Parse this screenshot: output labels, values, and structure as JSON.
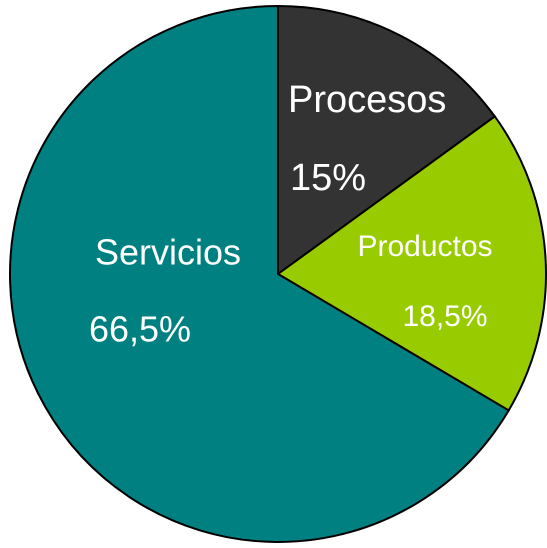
{
  "chart_data": {
    "type": "pie",
    "categories": [
      "Procesos",
      "Productos",
      "Servicios"
    ],
    "values": [
      15,
      18.5,
      66.5
    ],
    "value_labels": [
      "15%",
      "18,5%",
      "66,5%"
    ],
    "colors": [
      "#333333",
      "#99cc00",
      "#008080"
    ]
  }
}
